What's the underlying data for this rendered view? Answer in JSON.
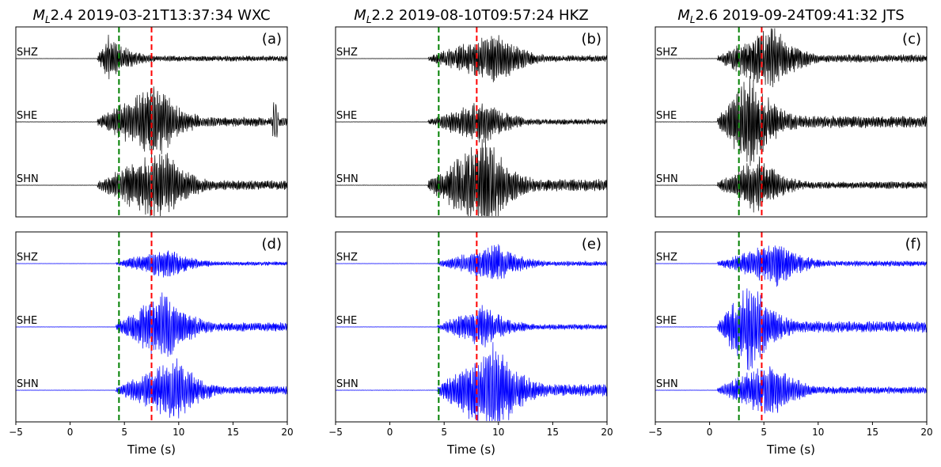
{
  "chart_data": [
    {
      "type": "line",
      "panel": "(a)",
      "title_math": "M",
      "title_sub": "L",
      "title_rest": "2.4 2019-03-21T13:37:34 WXC",
      "channels": [
        "SHZ",
        "SHE",
        "SHN"
      ],
      "xlim": [
        -5,
        20
      ],
      "xticks": [
        -5,
        0,
        5,
        10,
        15,
        20
      ],
      "xlabel": "",
      "p_pick": 4.5,
      "s_pick": 7.5,
      "trace_color": "#000000",
      "onset": 2.5,
      "peak": [
        3.5,
        8.0,
        8.5
      ],
      "amp": [
        0.35,
        0.6,
        0.6
      ],
      "seed": 11,
      "spike": 18.9
    },
    {
      "type": "line",
      "panel": "(b)",
      "title_math": "M",
      "title_sub": "L",
      "title_rest": "2.2 2019-08-10T09:57:24 HKZ",
      "channels": [
        "SHZ",
        "SHE",
        "SHN"
      ],
      "xlim": [
        -5,
        20
      ],
      "xticks": [
        -5,
        0,
        5,
        10,
        15,
        20
      ],
      "xlabel": "",
      "p_pick": 4.5,
      "s_pick": 8.0,
      "trace_color": "#000000",
      "onset": 3.5,
      "peak": [
        10.0,
        8.7,
        9.0
      ],
      "amp": [
        0.4,
        0.35,
        0.75
      ],
      "seed": 23
    },
    {
      "type": "line",
      "panel": "(c)",
      "title_math": "M",
      "title_sub": "L",
      "title_rest": "2.6 2019-09-24T09:41:32 JTS",
      "channels": [
        "SHZ",
        "SHE",
        "SHN"
      ],
      "xlim": [
        -5,
        20
      ],
      "xticks": [
        -5,
        0,
        5,
        10,
        15,
        20
      ],
      "xlabel": "",
      "p_pick": 2.7,
      "s_pick": 4.8,
      "trace_color": "#000000",
      "onset": 0.7,
      "peak": [
        5.8,
        3.8,
        4.6
      ],
      "amp": [
        0.5,
        0.75,
        0.45
      ],
      "seed": 37
    },
    {
      "type": "line",
      "panel": "(d)",
      "channels": [
        "SHZ",
        "SHE",
        "SHN"
      ],
      "xlim": [
        -5,
        20
      ],
      "xticks": [
        -5,
        0,
        5,
        10,
        15,
        20
      ],
      "xlabel": "Time (s)",
      "p_pick": 4.5,
      "s_pick": 7.5,
      "trace_color": "#0000ff",
      "onset": 4.2,
      "peak": [
        9.0,
        8.8,
        9.8
      ],
      "amp": [
        0.25,
        0.55,
        0.5
      ],
      "seed": 51
    },
    {
      "type": "line",
      "panel": "(e)",
      "channels": [
        "SHZ",
        "SHE",
        "SHN"
      ],
      "xlim": [
        -5,
        20
      ],
      "xticks": [
        -5,
        0,
        5,
        10,
        15,
        20
      ],
      "xlabel": "Time (s)",
      "p_pick": 4.5,
      "s_pick": 8.0,
      "trace_color": "#0000ff",
      "onset": 4.4,
      "peak": [
        10.0,
        8.7,
        9.8
      ],
      "amp": [
        0.3,
        0.35,
        0.75
      ],
      "seed": 63
    },
    {
      "type": "line",
      "panel": "(f)",
      "channels": [
        "SHZ",
        "SHE",
        "SHN"
      ],
      "xlim": [
        -5,
        20
      ],
      "xticks": [
        -5,
        0,
        5,
        10,
        15,
        20
      ],
      "xlabel": "Time (s)",
      "p_pick": 2.7,
      "s_pick": 4.8,
      "trace_color": "#0000ff",
      "onset": 0.7,
      "peak": [
        6.4,
        3.8,
        5.8
      ],
      "amp": [
        0.35,
        0.7,
        0.45
      ],
      "seed": 79
    }
  ],
  "colors": {
    "p_pick": "#008000",
    "s_pick": "#ff0000"
  }
}
